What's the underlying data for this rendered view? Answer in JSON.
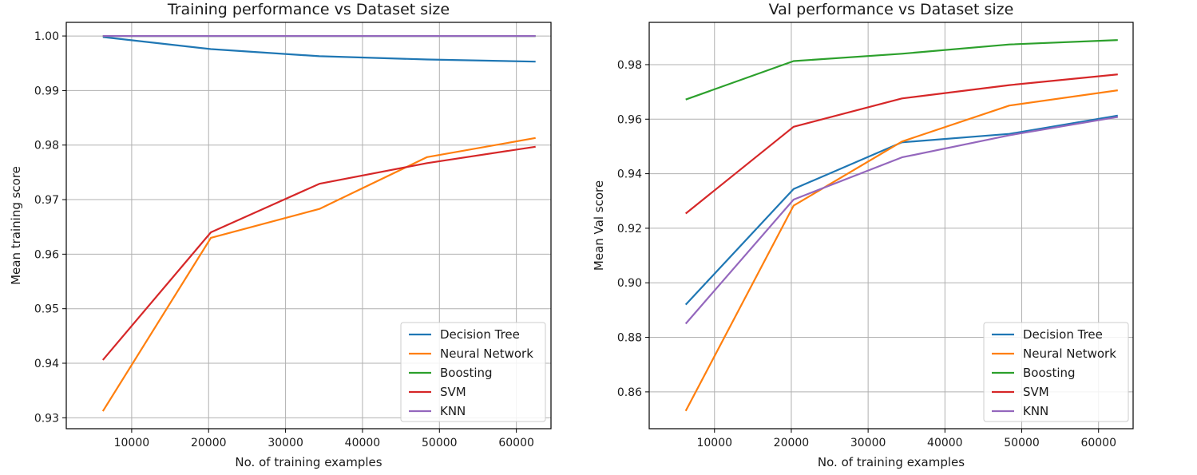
{
  "chart_data": [
    {
      "type": "line",
      "title": "Training performance vs Dataset size",
      "xlabel": "No. of training examples",
      "ylabel": "Mean training score",
      "x": [
        6250,
        20300,
        34400,
        48400,
        62500
      ],
      "xlim": [
        1500,
        64500
      ],
      "ylim": [
        0.928,
        1.0025
      ],
      "xticks": [
        10000,
        20000,
        30000,
        40000,
        50000,
        60000
      ],
      "xtick_labels": [
        "10000",
        "20000",
        "30000",
        "40000",
        "50000",
        "60000"
      ],
      "yticks": [
        0.93,
        0.94,
        0.95,
        0.96,
        0.97,
        0.98,
        0.99,
        1.0
      ],
      "ytick_labels": [
        "0.93",
        "0.94",
        "0.95",
        "0.96",
        "0.97",
        "0.98",
        "0.99",
        "1.00"
      ],
      "grid": true,
      "legend_position": "bottom-right",
      "series": [
        {
          "name": "Decision Tree",
          "color": "#1f77b4",
          "values": [
            0.9998,
            0.9976,
            0.9963,
            0.9957,
            0.9953
          ]
        },
        {
          "name": "Neural Network",
          "color": "#ff7f0e",
          "values": [
            0.9312,
            0.963,
            0.9683,
            0.9778,
            0.9813
          ]
        },
        {
          "name": "Boosting",
          "color": "#2ca02c",
          "values": [
            1.0,
            1.0,
            1.0,
            1.0,
            1.0
          ]
        },
        {
          "name": "SVM",
          "color": "#d62728",
          "values": [
            0.9406,
            0.964,
            0.9729,
            0.9767,
            0.9797
          ]
        },
        {
          "name": "KNN",
          "color": "#9467bd",
          "values": [
            1.0,
            1.0,
            1.0,
            1.0,
            1.0
          ]
        }
      ]
    },
    {
      "type": "line",
      "title": "Val performance vs Dataset size",
      "xlabel": "No. of training examples",
      "ylabel": "Mean Val score",
      "x": [
        6250,
        20300,
        34400,
        48400,
        62500
      ],
      "xlim": [
        1500,
        64500
      ],
      "ylim": [
        0.8465,
        0.9955
      ],
      "xticks": [
        10000,
        20000,
        30000,
        40000,
        50000,
        60000
      ],
      "xtick_labels": [
        "10000",
        "20000",
        "30000",
        "40000",
        "50000",
        "60000"
      ],
      "yticks": [
        0.86,
        0.88,
        0.9,
        0.92,
        0.94,
        0.96,
        0.98
      ],
      "ytick_labels": [
        "0.86",
        "0.88",
        "0.90",
        "0.92",
        "0.94",
        "0.96",
        "0.98"
      ],
      "grid": true,
      "legend_position": "bottom-right",
      "series": [
        {
          "name": "Decision Tree",
          "color": "#1f77b4",
          "values": [
            0.892,
            0.9344,
            0.9515,
            0.9546,
            0.9613
          ]
        },
        {
          "name": "Neural Network",
          "color": "#ff7f0e",
          "values": [
            0.853,
            0.9283,
            0.9518,
            0.965,
            0.9706
          ]
        },
        {
          "name": "Boosting",
          "color": "#2ca02c",
          "values": [
            0.9672,
            0.9813,
            0.984,
            0.9874,
            0.989
          ]
        },
        {
          "name": "SVM",
          "color": "#d62728",
          "values": [
            0.9254,
            0.9572,
            0.9676,
            0.9725,
            0.9764
          ]
        },
        {
          "name": "KNN",
          "color": "#9467bd",
          "values": [
            0.885,
            0.9305,
            0.946,
            0.9541,
            0.9608
          ]
        }
      ]
    }
  ]
}
